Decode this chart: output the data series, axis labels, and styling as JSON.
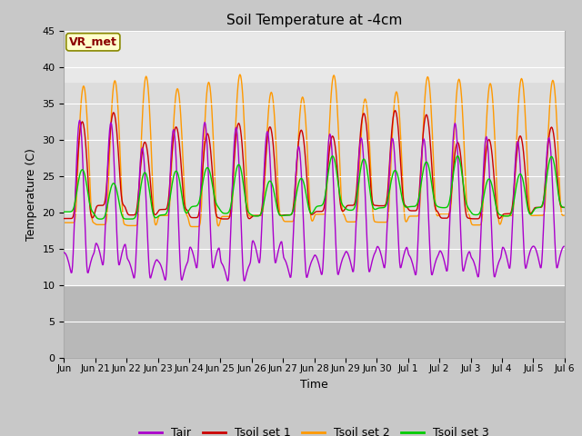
{
  "title": "Soil Temperature at -4cm",
  "xlabel": "Time",
  "ylabel": "Temperature (C)",
  "ylim": [
    0,
    45
  ],
  "yticks": [
    0,
    5,
    10,
    15,
    20,
    25,
    30,
    35,
    40,
    45
  ],
  "fig_bg_color": "#c8c8c8",
  "plot_bg_color": "#e8e8e8",
  "shaded_band_light": [
    10,
    38
  ],
  "shaded_band_dark": [
    0,
    10
  ],
  "colors": {
    "Tair": "#aa00cc",
    "Tsoil_set1": "#cc0000",
    "Tsoil_set2": "#ff9900",
    "Tsoil_set3": "#00cc00"
  },
  "legend_labels": [
    "Tair",
    "Tsoil set 1",
    "Tsoil set 2",
    "Tsoil set 3"
  ],
  "annotation_text": "VR_met",
  "n_days": 16
}
